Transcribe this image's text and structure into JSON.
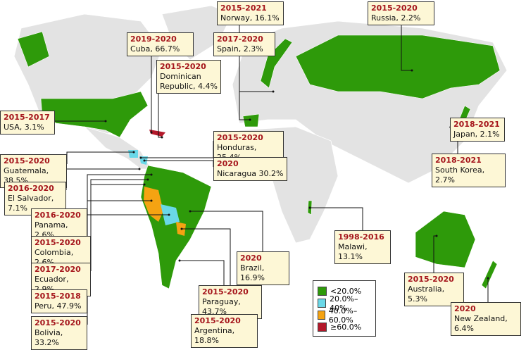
{
  "callouts": [
    {
      "years": "2015-2021",
      "label": "Norway, 16.1%"
    },
    {
      "years": "2015-2020",
      "label": "Russia, 2.2%"
    },
    {
      "years": "2019-2020",
      "label": "Cuba, 66.7%"
    },
    {
      "years": "2017-2020",
      "label": "Spain, 2.3%"
    },
    {
      "years": "2015-2020",
      "label": "Dominican Republic, 4.4%"
    },
    {
      "years": "2015-2017",
      "label": "USA, 3.1%"
    },
    {
      "years": "2015-2020",
      "label": "Honduras, 25.4%"
    },
    {
      "years": "2018-2021",
      "label": "Japan, 2.1%"
    },
    {
      "years": "2015-2020",
      "label": "Guatemala, 38.5%"
    },
    {
      "years": "2020",
      "label": "Nicaragua 30.2%"
    },
    {
      "years": "2016-2020",
      "label": "El Salvador, 7.1%"
    },
    {
      "years": "2018-2021",
      "label": "South Korea, 2.7%"
    },
    {
      "years": "2016-2020",
      "label": "Panama, 2.6%"
    },
    {
      "years": "1998-2016",
      "label": "Malawi, 13.1%"
    },
    {
      "years": "2020",
      "label": "Brazil, 16.9%"
    },
    {
      "years": "2015-2020",
      "label": "Colombia, 2.6%"
    },
    {
      "years": "2017-2020",
      "label": "Ecuador, 2.9%"
    },
    {
      "years": "2015-2018",
      "label": "Peru, 47.9%"
    },
    {
      "years": "2015-2020",
      "label": "Paraguay, 43.7%"
    },
    {
      "years": "2015-2020",
      "label": "Australia, 5.3%"
    },
    {
      "years": "2020",
      "label": "New Zealand, 6.4%"
    },
    {
      "years": "2015-2020",
      "label": "Bolivia, 33.2%"
    },
    {
      "years": "2015-2020",
      "label": "Argentina, 18.8%"
    }
  ],
  "legend": [
    {
      "label": "<20.0%",
      "color": "#2e9a0a"
    },
    {
      "label": "20.0%–40%",
      "color": "#6ad8e8"
    },
    {
      "label": "40.0%–60.0%",
      "color": "#f5a312"
    },
    {
      "label": "≥60.0%",
      "color": "#b3182a"
    }
  ]
}
